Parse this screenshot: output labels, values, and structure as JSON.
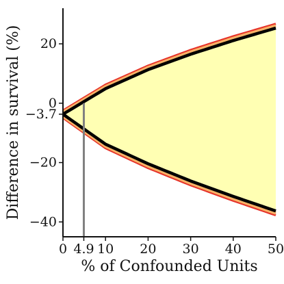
{
  "chart_data": {
    "type": "area",
    "xlabel": "% of Confounded Units",
    "ylabel": "Difference in survival (%)",
    "xlim": [
      0,
      50
    ],
    "ylim": [
      -45,
      32
    ],
    "x_ticks": [
      0,
      4.9,
      10,
      20,
      30,
      40,
      50
    ],
    "x_tick_labels": [
      "0",
      "4.9",
      "10",
      "20",
      "30",
      "40",
      "50"
    ],
    "y_ticks": [
      20,
      0,
      -3.7,
      -20,
      -40
    ],
    "y_tick_labels": [
      "20",
      "0",
      "−3.7",
      "−20",
      "−40"
    ],
    "grid": false,
    "legend": "none",
    "reference_line_x": 4.9,
    "colors": {
      "fill": "#ffffb3",
      "outer_band": "#e6332a",
      "inner_band": "#f7b267",
      "bound": "#000000",
      "reference": "#808080"
    },
    "series": [
      {
        "x": [
          0,
          10,
          20,
          30,
          40,
          50
        ],
        "values": [
          -3.7,
          4.9,
          11.3,
          16.5,
          21.1,
          25.3
        ]
      },
      {
        "x": [
          0,
          10,
          20,
          30,
          40,
          50
        ],
        "values": [
          -3.7,
          -13.8,
          -20.4,
          -26.2,
          -31.4,
          -36.3
        ]
      },
      {
        "x": [
          0,
          10,
          20,
          30,
          40,
          50
        ],
        "values": [
          -2.5,
          6.2,
          12.6,
          17.9,
          22.5,
          26.7
        ]
      },
      {
        "x": [
          0,
          10,
          20,
          30,
          40,
          50
        ],
        "values": [
          -4.9,
          -15.1,
          -21.8,
          -27.6,
          -32.8,
          -37.7
        ]
      }
    ]
  }
}
